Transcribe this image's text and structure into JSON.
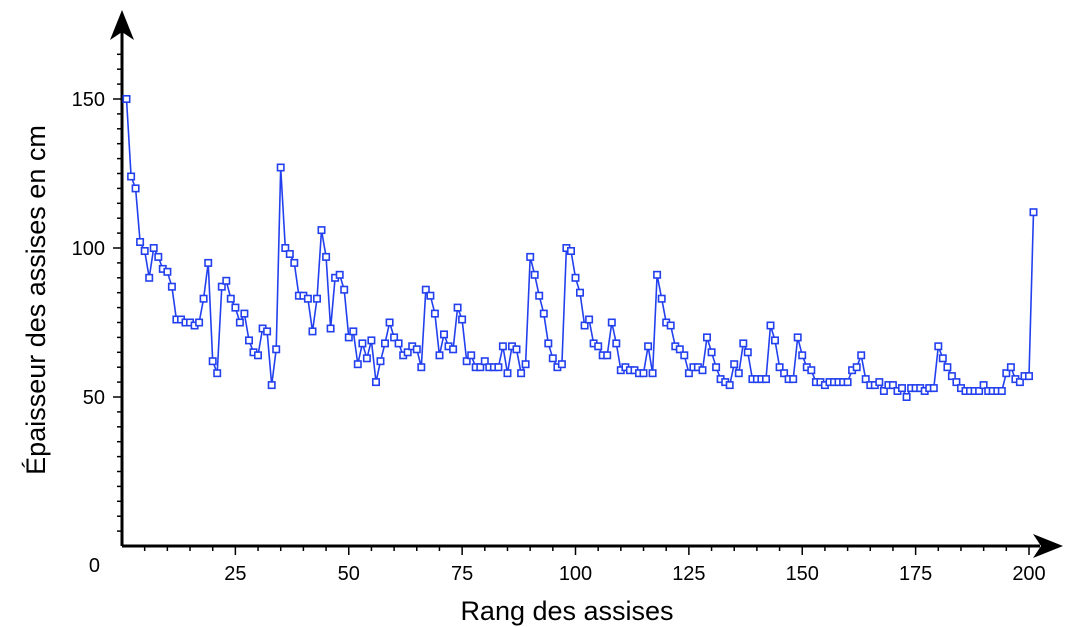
{
  "chart_data": {
    "type": "line",
    "title": "",
    "xlabel": "Rang des assises",
    "ylabel": "Épaisseur des assises en cm",
    "xlim": [
      0,
      203
    ],
    "ylim": [
      0,
      168
    ],
    "x_ticks": [
      25,
      50,
      75,
      100,
      125,
      150,
      175,
      200
    ],
    "x_tick_labels": [
      "25",
      "50",
      "75",
      "100",
      "125",
      "150",
      "175",
      "200"
    ],
    "y_ticks": [
      50,
      100,
      150
    ],
    "y_tick_labels": [
      "50",
      "100",
      "150"
    ],
    "origin_label": "0",
    "grid": false,
    "legend": "none",
    "series_color": "#2340ee",
    "series": [
      {
        "marker": "square",
        "x": [
          1,
          2,
          3,
          4,
          5,
          6,
          7,
          8,
          9,
          10,
          11,
          12,
          13,
          14,
          15,
          16,
          17,
          18,
          19,
          20,
          21,
          22,
          23,
          24,
          25,
          26,
          27,
          28,
          29,
          30,
          31,
          32,
          33,
          34,
          35,
          36,
          37,
          38,
          39,
          40,
          41,
          42,
          43,
          44,
          45,
          46,
          47,
          48,
          49,
          50,
          51,
          52,
          53,
          54,
          55,
          56,
          57,
          58,
          59,
          60,
          61,
          62,
          63,
          64,
          65,
          66,
          67,
          68,
          69,
          70,
          71,
          72,
          73,
          74,
          75,
          76,
          77,
          78,
          79,
          80,
          81,
          82,
          83,
          84,
          85,
          86,
          87,
          88,
          89,
          90,
          91,
          92,
          93,
          94,
          95,
          96,
          97,
          98,
          99,
          100,
          101,
          102,
          103,
          104,
          105,
          106,
          107,
          108,
          109,
          110,
          111,
          112,
          113,
          114,
          115,
          116,
          117,
          118,
          119,
          120,
          121,
          122,
          123,
          124,
          125,
          126,
          127,
          128,
          129,
          130,
          131,
          132,
          133,
          134,
          135,
          136,
          137,
          138,
          139,
          140,
          141,
          142,
          143,
          144,
          145,
          146,
          147,
          148,
          149,
          150,
          151,
          152,
          153,
          154,
          155,
          156,
          157,
          158,
          159,
          160,
          161,
          162,
          163,
          164,
          165,
          166,
          167,
          168,
          169,
          170,
          171,
          172,
          173,
          174,
          175,
          176,
          177,
          178,
          179,
          180,
          181,
          182,
          183,
          184,
          185,
          186,
          187,
          188,
          189,
          190,
          191,
          192,
          193,
          194,
          195,
          196,
          197,
          198,
          199,
          200,
          201
        ],
        "values": [
          150,
          124,
          120,
          102,
          99,
          90,
          100,
          97,
          93,
          92,
          87,
          76,
          76,
          75,
          75,
          74,
          75,
          83,
          95,
          62,
          58,
          87,
          89,
          83,
          80,
          75,
          78,
          69,
          65,
          64,
          73,
          72,
          54,
          66,
          127,
          100,
          98,
          95,
          84,
          84,
          83,
          72,
          83,
          106,
          97,
          73,
          90,
          91,
          86,
          70,
          72,
          61,
          68,
          63,
          69,
          55,
          62,
          68,
          75,
          70,
          68,
          64,
          65,
          67,
          66,
          60,
          86,
          84,
          78,
          64,
          71,
          67,
          66,
          80,
          76,
          62,
          64,
          60,
          60,
          62,
          60,
          60,
          60,
          67,
          58,
          67,
          66,
          58,
          61,
          97,
          91,
          84,
          78,
          68,
          63,
          60,
          61,
          100,
          99,
          90,
          85,
          74,
          76,
          68,
          67,
          64,
          64,
          75,
          68,
          59,
          60,
          59,
          59,
          58,
          58,
          67,
          58,
          91,
          83,
          75,
          74,
          67,
          66,
          64,
          58,
          60,
          60,
          59,
          70,
          65,
          60,
          56,
          55,
          54,
          61,
          58,
          68,
          65,
          56,
          56,
          56,
          56,
          74,
          69,
          60,
          58,
          56,
          56,
          70,
          64,
          60,
          59,
          55,
          55,
          54,
          55,
          55,
          55,
          55,
          55,
          59,
          60,
          64,
          56,
          54,
          54,
          55,
          52,
          54,
          54,
          52,
          53,
          50,
          53,
          53,
          53,
          52,
          53,
          53,
          67,
          63,
          60,
          57,
          55,
          53,
          52,
          52,
          52,
          52,
          54,
          52,
          52,
          52,
          52,
          58,
          60,
          56,
          55,
          57,
          57,
          112
        ]
      }
    ]
  }
}
